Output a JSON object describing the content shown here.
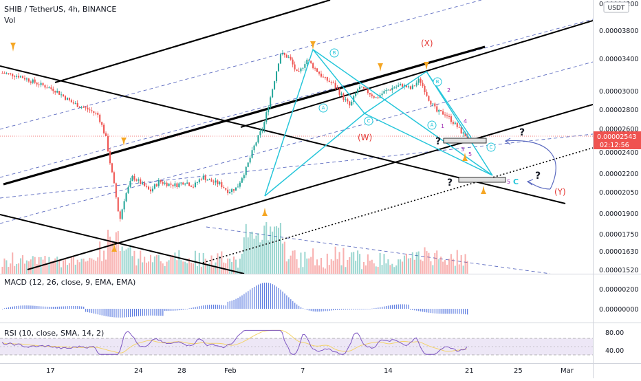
{
  "header": {
    "symbol_line": "SHIB / TetherUS, 4h, BINANCE",
    "volume_label": "Vol",
    "currency_badge": "USDT",
    "macd_label": "MACD (12, 26, close, 9, EMA, EMA)",
    "rsi_label": "RSI (10, close, SMA, 14, 2)"
  },
  "price_badge": {
    "price": "0.00002543",
    "countdown": "02:12:56",
    "color": "#ef5350"
  },
  "colors": {
    "channel": "#000000",
    "pattern": "#26c6da",
    "arrow": "#f5a623",
    "dashed": "#5c6bc0",
    "wave_red": "#e53935",
    "wave_purple": "#9c27b0",
    "up": "#26a69a",
    "down": "#ef5350",
    "macd": "#5b7be0",
    "rsi": "#7e57c2",
    "rsi_ma": "#f3d36b"
  },
  "chart_data": {
    "type": "candlestick",
    "symbol": "SHIB / TetherUS",
    "interval": "4h",
    "exchange": "BINANCE",
    "price_axis": [
      "0.00004200",
      "0.00003800",
      "0.00003400",
      "0.00003000",
      "0.00002800",
      "0.00002600",
      "0.00002400",
      "0.00002200",
      "0.00002050",
      "0.00001900",
      "0.00001750",
      "0.00001630",
      "0.00001520"
    ],
    "time_axis": [
      "17",
      "24",
      "28",
      "Feb",
      "7",
      "14",
      "21",
      "25",
      "Mar"
    ],
    "close_path": [
      [
        0,
        3.23e-05
      ],
      [
        2,
        3.19e-05
      ],
      [
        4,
        3.1e-05
      ],
      [
        6,
        3.02e-05
      ],
      [
        8,
        2.88e-05
      ],
      [
        10,
        2.8e-05
      ],
      [
        11,
        2.75e-05
      ],
      [
        12,
        2.5e-05
      ],
      [
        12.5,
        2.25e-05
      ],
      [
        13,
        2.05e-05
      ],
      [
        13.5,
        1.85e-05
      ],
      [
        14,
        2e-05
      ],
      [
        15,
        2.18e-05
      ],
      [
        16,
        2.12e-05
      ],
      [
        17,
        2.06e-05
      ],
      [
        18,
        2.14e-05
      ],
      [
        19,
        2.12e-05
      ],
      [
        20,
        2.11e-05
      ],
      [
        21,
        2.14e-05
      ],
      [
        22,
        2.1e-05
      ],
      [
        23,
        2.18e-05
      ],
      [
        24,
        2.14e-05
      ],
      [
        25,
        2.12e-05
      ],
      [
        26,
        2.06e-05
      ],
      [
        27,
        2.09e-05
      ],
      [
        28,
        2.24e-05
      ],
      [
        29,
        2.46e-05
      ],
      [
        30,
        2.62e-05
      ],
      [
        31,
        3e-05
      ],
      [
        32,
        3.48e-05
      ],
      [
        33,
        3.42e-05
      ],
      [
        34,
        3.2e-05
      ],
      [
        35,
        3.4e-05
      ],
      [
        36,
        3.28e-05
      ],
      [
        37,
        3.16e-05
      ],
      [
        38,
        3.1e-05
      ],
      [
        39,
        2.96e-05
      ],
      [
        40,
        2.84e-05
      ],
      [
        41,
        3.05e-05
      ],
      [
        42,
        3e-05
      ],
      [
        43,
        2.93e-05
      ],
      [
        44,
        3e-05
      ],
      [
        45,
        3.05e-05
      ],
      [
        46,
        3.08e-05
      ],
      [
        47,
        3.03e-05
      ],
      [
        48,
        3.15e-05
      ],
      [
        49,
        2.93e-05
      ],
      [
        50,
        2.78e-05
      ],
      [
        51,
        2.76e-05
      ],
      [
        52,
        2.66e-05
      ],
      [
        53,
        2.56e-05
      ],
      [
        53.5,
        2.54e-05
      ]
    ],
    "macd_label": "MACD (12, 26, close, 9, EMA, EMA)",
    "macd_axis": [
      "0.00000200",
      "0.00000000"
    ],
    "rsi_label": "RSI (10, close, SMA, 14, 2)",
    "rsi_axis": [
      "80.00",
      "40.00"
    ],
    "wave_labels": {
      "circled": [
        "A",
        "B",
        "C",
        "A",
        "B",
        "C"
      ],
      "corrective": [
        "(X)",
        "(W)",
        "(Y)"
      ],
      "impulse": [
        "1",
        "2",
        "3",
        "4",
        "5"
      ],
      "final": "C",
      "question": [
        "?",
        "?",
        "?",
        "?"
      ]
    }
  }
}
